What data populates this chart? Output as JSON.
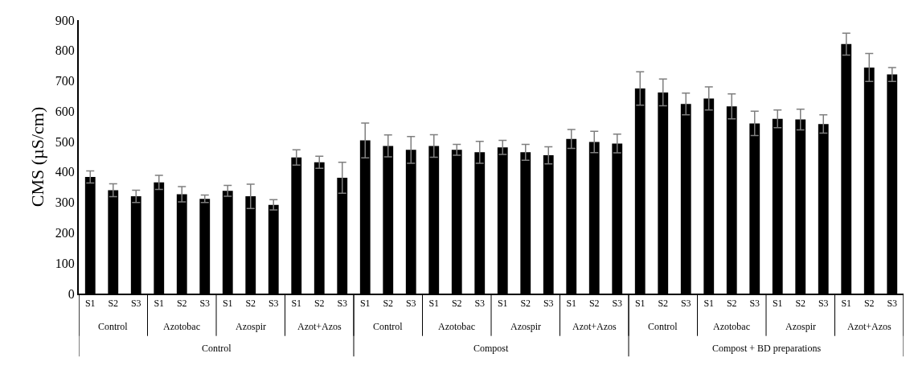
{
  "chart_data": {
    "type": "bar",
    "ylabel": "CMS (µS/cm)",
    "categories": [
      "S1",
      "S2",
      "S3",
      "S1",
      "S2",
      "S3",
      "S1",
      "S2",
      "S3",
      "S1",
      "S2",
      "S3",
      "S1",
      "S2",
      "S3",
      "S1",
      "S2",
      "S3",
      "S1",
      "S2",
      "S3",
      "S1",
      "S2",
      "S3",
      "S1",
      "S2",
      "S3",
      "S1",
      "S2",
      "S3",
      "S1",
      "S2",
      "S3",
      "S1",
      "S2",
      "S3"
    ],
    "values": [
      384,
      340,
      320,
      366,
      327,
      312,
      338,
      320,
      292,
      448,
      432,
      381,
      504,
      486,
      473,
      486,
      473,
      465,
      481,
      465,
      455,
      509,
      499,
      494,
      675,
      662,
      624,
      642,
      616,
      560,
      575,
      573,
      558,
      821,
      744,
      721
    ],
    "errors": [
      20,
      21,
      20,
      23,
      25,
      12,
      18,
      40,
      17,
      25,
      20,
      51,
      57,
      36,
      44,
      37,
      18,
      36,
      23,
      26,
      28,
      31,
      35,
      31,
      55,
      44,
      36,
      38,
      41,
      40,
      29,
      34,
      30,
      36,
      46,
      23
    ],
    "color": "#000000",
    "annotations": [
      "Control",
      "Azotobac",
      "Azospir",
      "Azot+Azos",
      "Control",
      "Azotobac",
      "Azospir",
      "Azot+Azos",
      "Control",
      "Azotobac",
      "Azospir",
      "Azot+Azos",
      "Control",
      "Compost",
      "Compost + BD preparations"
    ],
    "ylim": [
      0,
      900
    ],
    "yticks": [
      0,
      100,
      200,
      300,
      400,
      500,
      600,
      700,
      800,
      900
    ]
  }
}
